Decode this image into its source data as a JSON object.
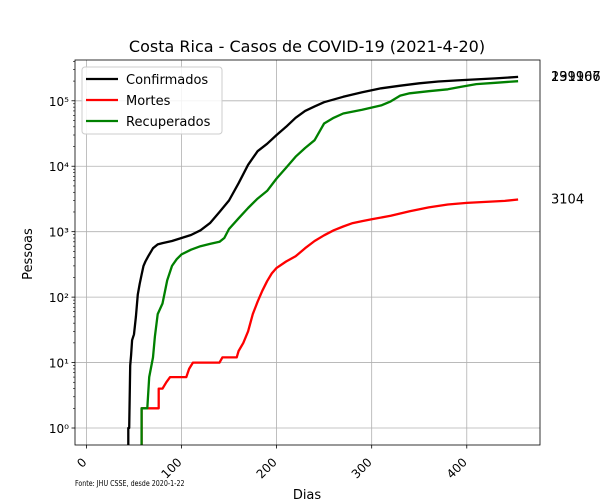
{
  "chart_data": {
    "type": "line",
    "title": "Costa Rica - Casos de COVID-19 (2021-4-20)",
    "xlabel": "Dias",
    "ylabel": "Pessoas",
    "yscale": "log",
    "xlim": [
      -12,
      477
    ],
    "ylim": [
      0.55,
      420000
    ],
    "x_ticks": [
      0,
      100,
      200,
      300,
      400
    ],
    "y_ticks": [
      {
        "value": 1,
        "label": "10⁰"
      },
      {
        "value": 10,
        "label": "10¹"
      },
      {
        "value": 100,
        "label": "10²"
      },
      {
        "value": 1000,
        "label": "10³"
      },
      {
        "value": 10000,
        "label": "10⁴"
      },
      {
        "value": 100000,
        "label": "10⁵"
      }
    ],
    "grid": true,
    "legend_position": "top-left",
    "series": [
      {
        "name": "Confirmados",
        "color": "#000000",
        "end_label": "231967",
        "points": [
          [
            44,
            0.4
          ],
          [
            44,
            1
          ],
          [
            45,
            1
          ],
          [
            46,
            9
          ],
          [
            47,
            13
          ],
          [
            48,
            22
          ],
          [
            50,
            27
          ],
          [
            52,
            50
          ],
          [
            54,
            110
          ],
          [
            56,
            160
          ],
          [
            58,
            220
          ],
          [
            60,
            300
          ],
          [
            62,
            350
          ],
          [
            65,
            420
          ],
          [
            68,
            500
          ],
          [
            70,
            560
          ],
          [
            75,
            640
          ],
          [
            80,
            670
          ],
          [
            90,
            720
          ],
          [
            100,
            800
          ],
          [
            110,
            890
          ],
          [
            120,
            1050
          ],
          [
            130,
            1350
          ],
          [
            140,
            2000
          ],
          [
            150,
            3000
          ],
          [
            160,
            5500
          ],
          [
            170,
            10500
          ],
          [
            180,
            17000
          ],
          [
            190,
            22000
          ],
          [
            200,
            30000
          ],
          [
            210,
            40000
          ],
          [
            220,
            55000
          ],
          [
            230,
            70000
          ],
          [
            240,
            82000
          ],
          [
            250,
            95000
          ],
          [
            270,
            115000
          ],
          [
            290,
            135000
          ],
          [
            310,
            155000
          ],
          [
            330,
            170000
          ],
          [
            350,
            185000
          ],
          [
            370,
            197000
          ],
          [
            390,
            205000
          ],
          [
            410,
            212000
          ],
          [
            430,
            220000
          ],
          [
            454,
            231967
          ]
        ]
      },
      {
        "name": "Mortes",
        "color": "#ff0000",
        "end_label": "3104",
        "points": [
          [
            58,
            0.4
          ],
          [
            58,
            2
          ],
          [
            60,
            2
          ],
          [
            76,
            2
          ],
          [
            76,
            4
          ],
          [
            80,
            4
          ],
          [
            84,
            5
          ],
          [
            88,
            6
          ],
          [
            105,
            6
          ],
          [
            108,
            8
          ],
          [
            112,
            10
          ],
          [
            140,
            10
          ],
          [
            143,
            12
          ],
          [
            158,
            12
          ],
          [
            160,
            15
          ],
          [
            165,
            20
          ],
          [
            170,
            30
          ],
          [
            175,
            55
          ],
          [
            180,
            85
          ],
          [
            185,
            125
          ],
          [
            190,
            175
          ],
          [
            195,
            230
          ],
          [
            200,
            280
          ],
          [
            210,
            350
          ],
          [
            220,
            420
          ],
          [
            230,
            560
          ],
          [
            240,
            720
          ],
          [
            250,
            880
          ],
          [
            260,
            1050
          ],
          [
            270,
            1200
          ],
          [
            280,
            1350
          ],
          [
            290,
            1450
          ],
          [
            300,
            1550
          ],
          [
            320,
            1750
          ],
          [
            340,
            2050
          ],
          [
            360,
            2350
          ],
          [
            380,
            2600
          ],
          [
            400,
            2750
          ],
          [
            420,
            2850
          ],
          [
            440,
            2950
          ],
          [
            454,
            3104
          ]
        ]
      },
      {
        "name": "Recuperados",
        "color": "#008000",
        "end_label": "199106",
        "points": [
          [
            58,
            0.4
          ],
          [
            58,
            2
          ],
          [
            64,
            2
          ],
          [
            66,
            6
          ],
          [
            70,
            12
          ],
          [
            72,
            25
          ],
          [
            75,
            55
          ],
          [
            80,
            80
          ],
          [
            85,
            180
          ],
          [
            90,
            300
          ],
          [
            95,
            380
          ],
          [
            100,
            450
          ],
          [
            110,
            530
          ],
          [
            120,
            600
          ],
          [
            130,
            650
          ],
          [
            140,
            700
          ],
          [
            145,
            800
          ],
          [
            150,
            1100
          ],
          [
            160,
            1600
          ],
          [
            170,
            2300
          ],
          [
            180,
            3200
          ],
          [
            190,
            4200
          ],
          [
            200,
            6500
          ],
          [
            210,
            9500
          ],
          [
            220,
            14000
          ],
          [
            230,
            19000
          ],
          [
            240,
            25000
          ],
          [
            250,
            45000
          ],
          [
            260,
            55000
          ],
          [
            270,
            64000
          ],
          [
            290,
            73000
          ],
          [
            310,
            85000
          ],
          [
            320,
            98000
          ],
          [
            330,
            120000
          ],
          [
            340,
            130000
          ],
          [
            360,
            140000
          ],
          [
            380,
            150000
          ],
          [
            395,
            165000
          ],
          [
            410,
            180000
          ],
          [
            430,
            188000
          ],
          [
            454,
            199106
          ]
        ]
      }
    ]
  },
  "source_note": "Fonte: JHU CSSE, desde 2020-1-22"
}
